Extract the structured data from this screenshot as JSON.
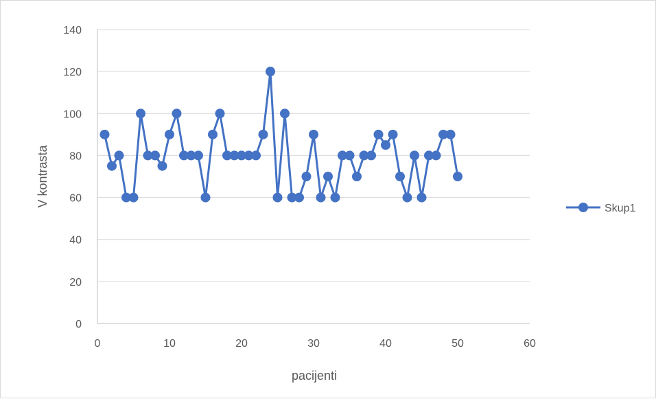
{
  "chart_data": {
    "type": "scatter",
    "title": "",
    "xlabel": "pacijenti",
    "ylabel": "V kontrasta",
    "xlim": [
      0,
      60
    ],
    "ylim": [
      0,
      140
    ],
    "xticks": [
      0,
      10,
      20,
      30,
      40,
      50,
      60
    ],
    "yticks": [
      0,
      20,
      40,
      60,
      80,
      100,
      120,
      140
    ],
    "grid": "horizontal",
    "legend": "right",
    "series": [
      {
        "name": "Skup1",
        "color": "#4472c4",
        "style": "line-with-markers",
        "x": [
          1,
          2,
          3,
          4,
          5,
          6,
          7,
          8,
          9,
          10,
          11,
          12,
          13,
          14,
          15,
          16,
          17,
          18,
          19,
          20,
          21,
          22,
          23,
          24,
          25,
          26,
          27,
          28,
          29,
          30,
          31,
          32,
          33,
          34,
          35,
          36,
          37,
          38,
          39,
          40,
          41,
          42,
          43,
          44,
          45,
          46,
          47,
          48,
          49,
          50
        ],
        "y": [
          90,
          75,
          80,
          60,
          60,
          100,
          80,
          80,
          75,
          90,
          100,
          80,
          80,
          80,
          60,
          90,
          100,
          80,
          80,
          80,
          80,
          80,
          90,
          120,
          60,
          100,
          60,
          60,
          70,
          90,
          60,
          70,
          60,
          80,
          80,
          70,
          80,
          80,
          90,
          85,
          90,
          70,
          60,
          80,
          60,
          80,
          80,
          90,
          90,
          70
        ]
      }
    ]
  }
}
